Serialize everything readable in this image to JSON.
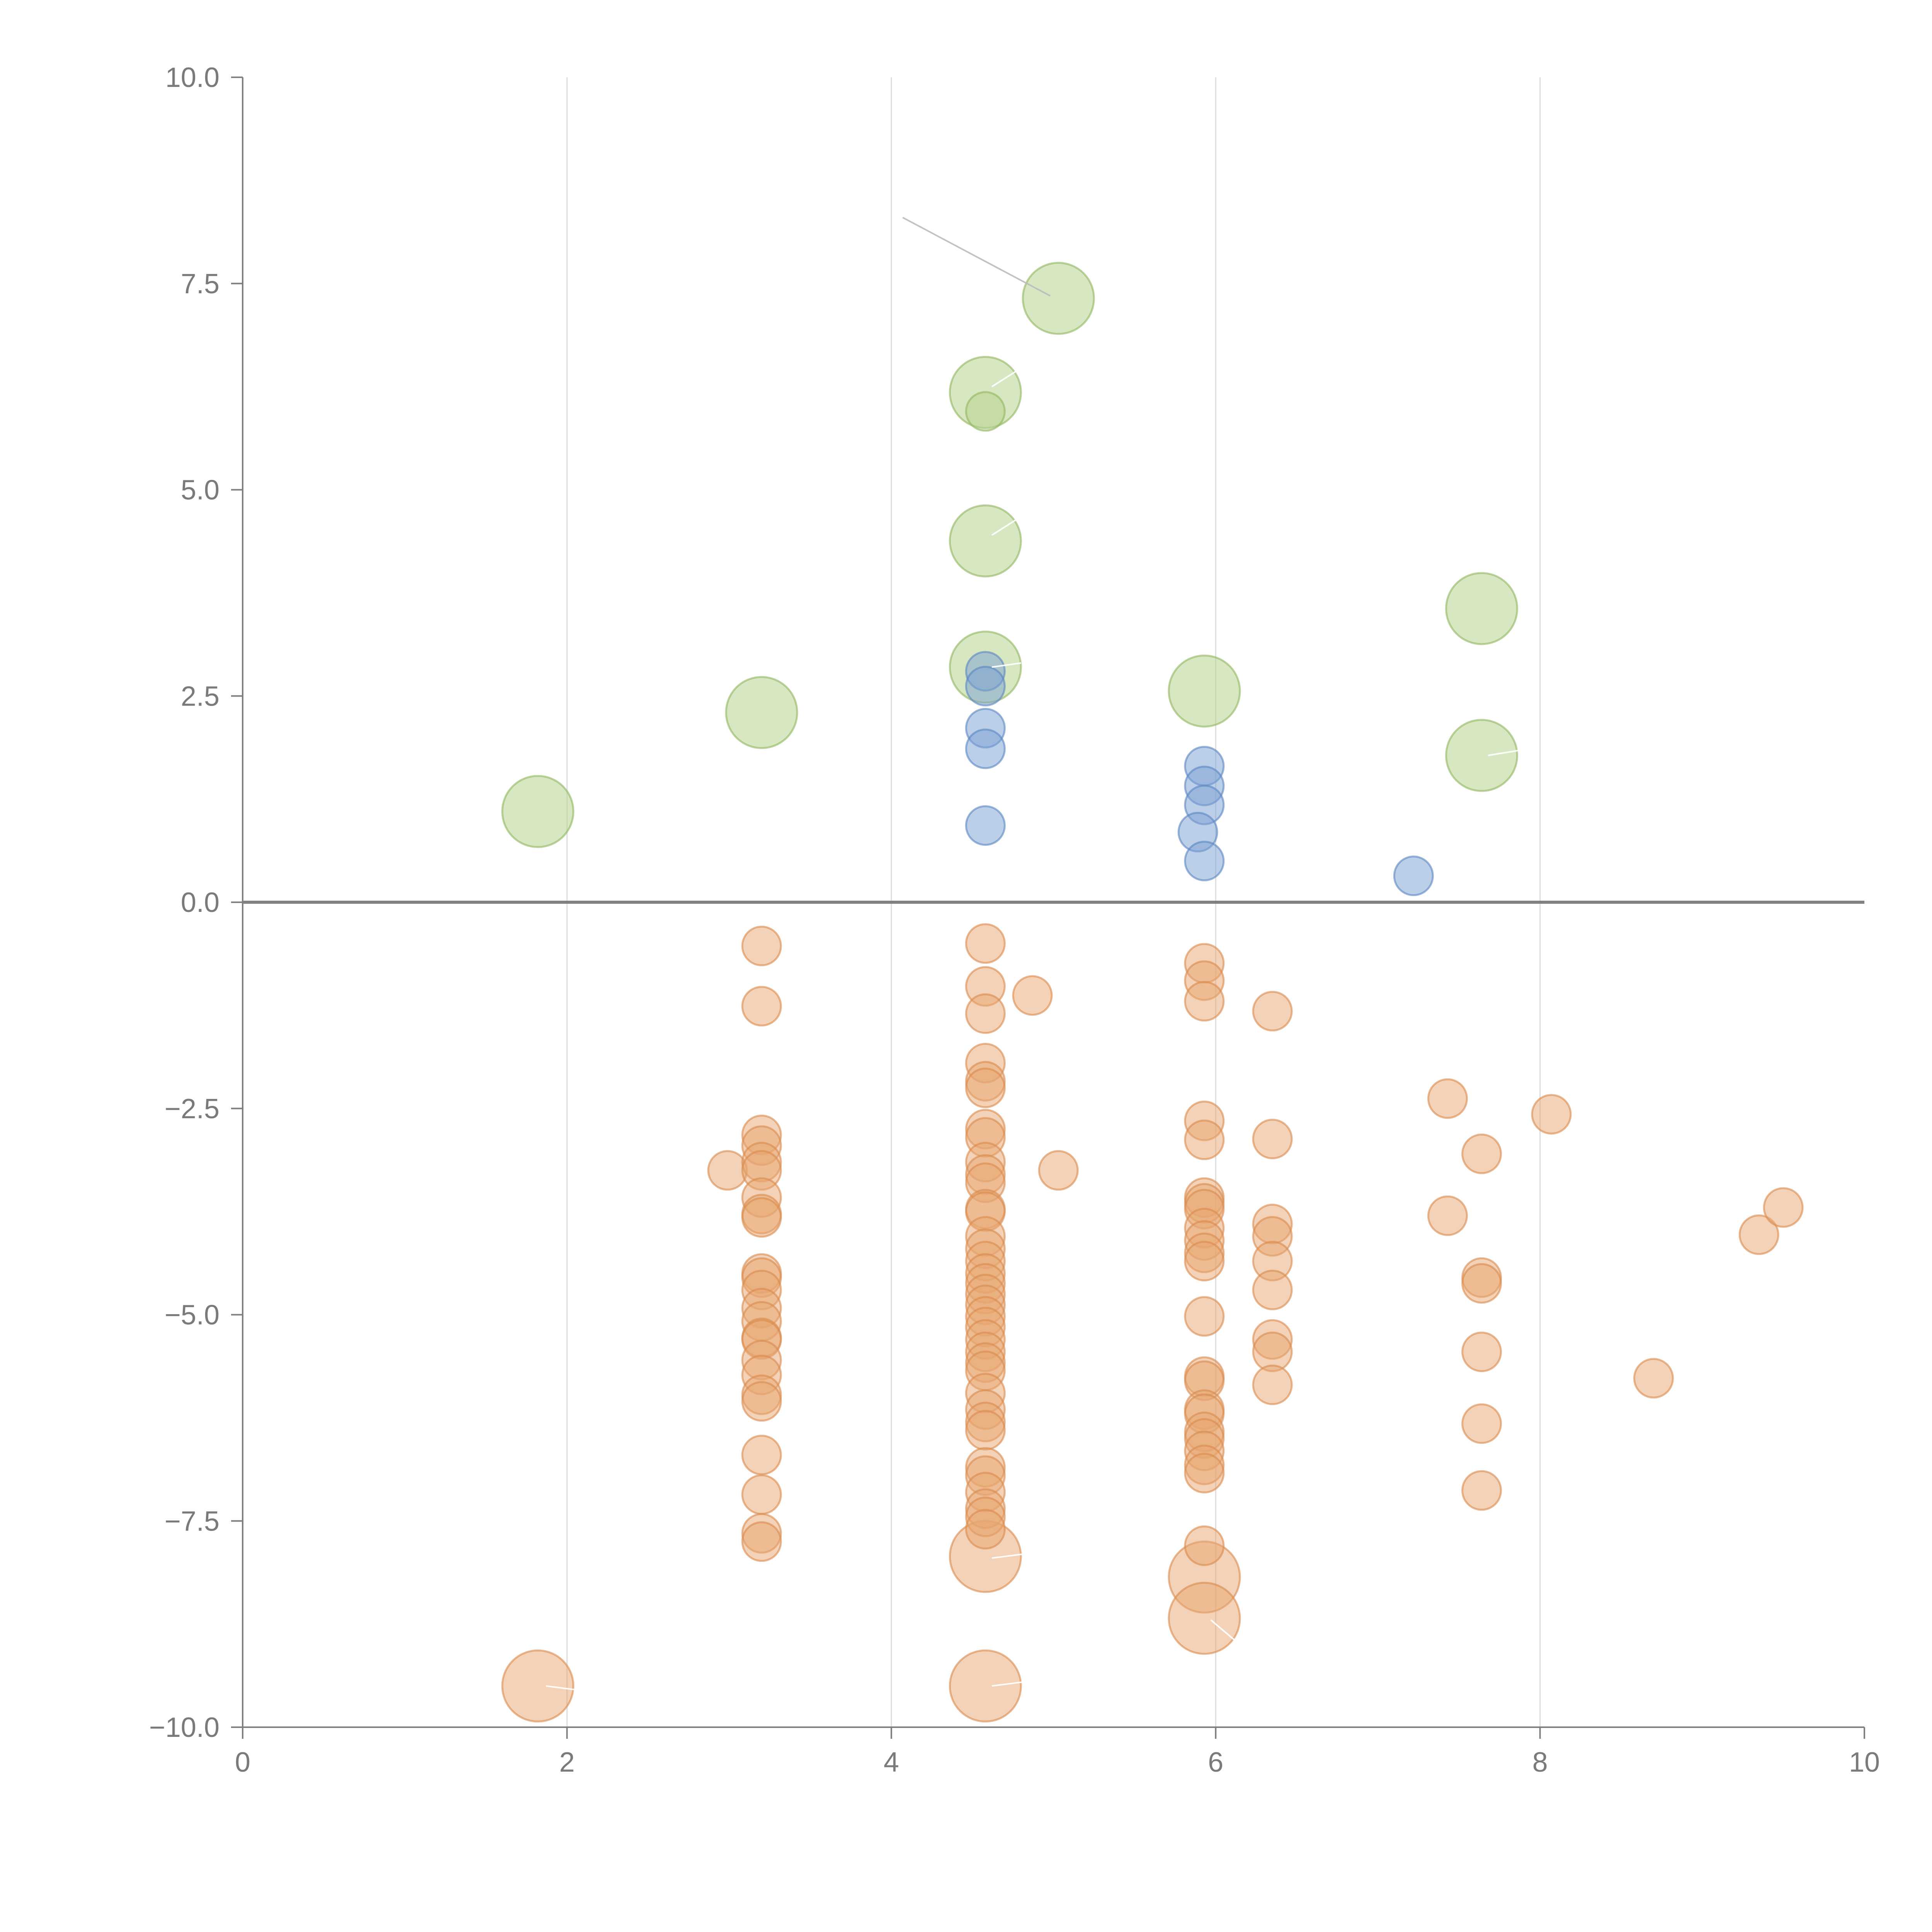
{
  "chart_data": {
    "type": "scatter",
    "title": "",
    "xlabel": "",
    "ylabel": "",
    "xlim": [
      0,
      10
    ],
    "ylim": [
      -10,
      10
    ],
    "x_ticks": [
      0,
      2,
      4,
      6,
      8,
      10
    ],
    "y_ticks": [
      10,
      7.5,
      5,
      2.5,
      0,
      -2.5,
      -5,
      -7.5,
      -10
    ],
    "x_tick_labels": [
      "0",
      "2",
      "4",
      "6",
      "8",
      "10"
    ],
    "y_tick_labels": [
      "10.0",
      "7.5",
      "5.0",
      "2.5",
      "0.0",
      "−2.5",
      "−5.0",
      "−7.5",
      "−10.0"
    ],
    "grid": "vertical",
    "reference_line": {
      "y": 0
    },
    "colors": {
      "green": "#b7d38e",
      "blue": "#7aa0d4",
      "orange": "#e8a670",
      "axis": "#7f7f7f",
      "grid": "#dcdcdc"
    },
    "series": [
      {
        "name": "green",
        "color": "#b7d38e",
        "stroke": "#8fb55f",
        "opacity": 0.55,
        "points": [
          {
            "x": 1.82,
            "y": 1.1,
            "size": 3
          },
          {
            "x": 3.2,
            "y": 2.3,
            "size": 3
          },
          {
            "x": 4.58,
            "y": 2.85,
            "size": 3
          },
          {
            "x": 4.58,
            "y": 4.38,
            "size": 3
          },
          {
            "x": 4.58,
            "y": 6.18,
            "size": 3
          },
          {
            "x": 4.58,
            "y": 5.95,
            "size": 1
          },
          {
            "x": 5.03,
            "y": 7.32,
            "size": 3
          },
          {
            "x": 5.93,
            "y": 2.56,
            "size": 3
          },
          {
            "x": 7.64,
            "y": 3.56,
            "size": 3
          },
          {
            "x": 7.64,
            "y": 1.78,
            "size": 3
          }
        ]
      },
      {
        "name": "blue",
        "color": "#7aa0d4",
        "stroke": "#5a86c2",
        "opacity": 0.5,
        "points": [
          {
            "x": 4.58,
            "y": 2.8,
            "size": 1
          },
          {
            "x": 4.58,
            "y": 2.62,
            "size": 1
          },
          {
            "x": 4.58,
            "y": 2.11,
            "size": 1
          },
          {
            "x": 4.58,
            "y": 1.86,
            "size": 1
          },
          {
            "x": 4.58,
            "y": 0.93,
            "size": 1
          },
          {
            "x": 5.93,
            "y": 1.65,
            "size": 1
          },
          {
            "x": 5.93,
            "y": 1.41,
            "size": 1
          },
          {
            "x": 5.93,
            "y": 1.18,
            "size": 1
          },
          {
            "x": 5.89,
            "y": 0.85,
            "size": 1
          },
          {
            "x": 5.93,
            "y": 0.5,
            "size": 1
          },
          {
            "x": 7.22,
            "y": 0.32,
            "size": 1
          }
        ]
      },
      {
        "name": "orange",
        "color": "#e8a670",
        "stroke": "#d98a4c",
        "opacity": 0.5,
        "points": [
          {
            "x": 3.2,
            "y": -0.53,
            "size": 1
          },
          {
            "x": 3.2,
            "y": -1.26,
            "size": 1
          },
          {
            "x": 2.99,
            "y": -3.25,
            "size": 1
          },
          {
            "x": 3.2,
            "y": -2.82,
            "size": 1
          },
          {
            "x": 3.2,
            "y": -2.95,
            "size": 1
          },
          {
            "x": 3.2,
            "y": -3.15,
            "size": 1
          },
          {
            "x": 3.2,
            "y": -3.25,
            "size": 1
          },
          {
            "x": 3.2,
            "y": -3.58,
            "size": 1
          },
          {
            "x": 3.2,
            "y": -3.78,
            "size": 1
          },
          {
            "x": 3.2,
            "y": -3.82,
            "size": 1
          },
          {
            "x": 3.2,
            "y": -4.5,
            "size": 1
          },
          {
            "x": 3.2,
            "y": -4.55,
            "size": 1
          },
          {
            "x": 3.2,
            "y": -4.7,
            "size": 1
          },
          {
            "x": 3.2,
            "y": -4.92,
            "size": 1
          },
          {
            "x": 3.2,
            "y": -5.08,
            "size": 1
          },
          {
            "x": 3.2,
            "y": -5.28,
            "size": 1
          },
          {
            "x": 3.2,
            "y": -5.3,
            "size": 1
          },
          {
            "x": 3.2,
            "y": -5.55,
            "size": 1
          },
          {
            "x": 3.2,
            "y": -5.73,
            "size": 1
          },
          {
            "x": 3.2,
            "y": -5.97,
            "size": 1
          },
          {
            "x": 3.2,
            "y": -6.05,
            "size": 1
          },
          {
            "x": 3.2,
            "y": -6.7,
            "size": 1
          },
          {
            "x": 3.2,
            "y": -7.18,
            "size": 1
          },
          {
            "x": 3.2,
            "y": -7.65,
            "size": 1
          },
          {
            "x": 3.2,
            "y": -7.75,
            "size": 1
          },
          {
            "x": 4.58,
            "y": -0.5,
            "size": 1
          },
          {
            "x": 4.58,
            "y": -1.02,
            "size": 1
          },
          {
            "x": 4.58,
            "y": -1.35,
            "size": 1
          },
          {
            "x": 4.58,
            "y": -1.95,
            "size": 1
          },
          {
            "x": 4.58,
            "y": -2.17,
            "size": 1
          },
          {
            "x": 4.58,
            "y": -2.25,
            "size": 1
          },
          {
            "x": 4.58,
            "y": -2.75,
            "size": 1
          },
          {
            "x": 4.58,
            "y": -2.85,
            "size": 1
          },
          {
            "x": 4.58,
            "y": -3.15,
            "size": 1
          },
          {
            "x": 4.58,
            "y": -3.3,
            "size": 1
          },
          {
            "x": 4.58,
            "y": -3.4,
            "size": 1
          },
          {
            "x": 4.58,
            "y": -3.72,
            "size": 1
          },
          {
            "x": 4.58,
            "y": -3.75,
            "size": 1
          },
          {
            "x": 4.58,
            "y": -4.05,
            "size": 1
          },
          {
            "x": 4.58,
            "y": -4.2,
            "size": 1
          },
          {
            "x": 4.58,
            "y": -4.35,
            "size": 1
          },
          {
            "x": 4.58,
            "y": -4.5,
            "size": 1
          },
          {
            "x": 4.58,
            "y": -4.62,
            "size": 1
          },
          {
            "x": 4.58,
            "y": -4.75,
            "size": 1
          },
          {
            "x": 4.58,
            "y": -4.88,
            "size": 1
          },
          {
            "x": 4.58,
            "y": -5.02,
            "size": 1
          },
          {
            "x": 4.58,
            "y": -5.15,
            "size": 1
          },
          {
            "x": 4.58,
            "y": -5.3,
            "size": 1
          },
          {
            "x": 4.58,
            "y": -5.45,
            "size": 1
          },
          {
            "x": 4.58,
            "y": -5.58,
            "size": 1
          },
          {
            "x": 4.58,
            "y": -5.68,
            "size": 1
          },
          {
            "x": 4.58,
            "y": -5.95,
            "size": 1
          },
          {
            "x": 4.58,
            "y": -6.15,
            "size": 1
          },
          {
            "x": 4.58,
            "y": -6.3,
            "size": 1
          },
          {
            "x": 4.58,
            "y": -6.4,
            "size": 1
          },
          {
            "x": 4.58,
            "y": -6.85,
            "size": 1
          },
          {
            "x": 4.58,
            "y": -6.95,
            "size": 1
          },
          {
            "x": 4.58,
            "y": -7.15,
            "size": 1
          },
          {
            "x": 4.58,
            "y": -7.35,
            "size": 1
          },
          {
            "x": 4.58,
            "y": -7.45,
            "size": 1
          },
          {
            "x": 4.58,
            "y": -7.6,
            "size": 1
          },
          {
            "x": 4.87,
            "y": -1.13,
            "size": 1
          },
          {
            "x": 5.03,
            "y": -3.25,
            "size": 1
          },
          {
            "x": 5.93,
            "y": -0.74,
            "size": 1
          },
          {
            "x": 5.93,
            "y": -0.95,
            "size": 1
          },
          {
            "x": 5.93,
            "y": -1.2,
            "size": 1
          },
          {
            "x": 5.93,
            "y": -2.65,
            "size": 1
          },
          {
            "x": 5.93,
            "y": -2.88,
            "size": 1
          },
          {
            "x": 5.93,
            "y": -3.58,
            "size": 1
          },
          {
            "x": 5.93,
            "y": -3.65,
            "size": 1
          },
          {
            "x": 5.93,
            "y": -3.72,
            "size": 1
          },
          {
            "x": 5.93,
            "y": -3.95,
            "size": 1
          },
          {
            "x": 5.93,
            "y": -4.1,
            "size": 1
          },
          {
            "x": 5.93,
            "y": -4.25,
            "size": 1
          },
          {
            "x": 5.93,
            "y": -4.35,
            "size": 1
          },
          {
            "x": 5.93,
            "y": -5.02,
            "size": 1
          },
          {
            "x": 5.93,
            "y": -5.75,
            "size": 1
          },
          {
            "x": 5.93,
            "y": -5.8,
            "size": 1
          },
          {
            "x": 5.93,
            "y": -6.15,
            "size": 1
          },
          {
            "x": 5.93,
            "y": -6.2,
            "size": 1
          },
          {
            "x": 5.93,
            "y": -6.42,
            "size": 1
          },
          {
            "x": 5.93,
            "y": -6.5,
            "size": 1
          },
          {
            "x": 5.93,
            "y": -6.65,
            "size": 1
          },
          {
            "x": 5.93,
            "y": -6.82,
            "size": 1
          },
          {
            "x": 5.93,
            "y": -6.92,
            "size": 1
          },
          {
            "x": 5.93,
            "y": -7.8,
            "size": 1
          },
          {
            "x": 6.35,
            "y": -1.32,
            "size": 1
          },
          {
            "x": 6.35,
            "y": -2.87,
            "size": 1
          },
          {
            "x": 6.35,
            "y": -3.9,
            "size": 1
          },
          {
            "x": 6.35,
            "y": -4.05,
            "size": 1
          },
          {
            "x": 6.35,
            "y": -4.35,
            "size": 1
          },
          {
            "x": 6.35,
            "y": -4.7,
            "size": 1
          },
          {
            "x": 6.35,
            "y": -5.3,
            "size": 1
          },
          {
            "x": 6.35,
            "y": -5.45,
            "size": 1
          },
          {
            "x": 6.35,
            "y": -5.85,
            "size": 1
          },
          {
            "x": 7.43,
            "y": -2.38,
            "size": 1
          },
          {
            "x": 7.43,
            "y": -3.8,
            "size": 1
          },
          {
            "x": 7.64,
            "y": -3.05,
            "size": 1
          },
          {
            "x": 7.64,
            "y": -4.55,
            "size": 1
          },
          {
            "x": 7.64,
            "y": -4.62,
            "size": 1
          },
          {
            "x": 7.64,
            "y": -5.45,
            "size": 1
          },
          {
            "x": 7.64,
            "y": -6.32,
            "size": 1
          },
          {
            "x": 7.64,
            "y": -7.13,
            "size": 1
          },
          {
            "x": 8.07,
            "y": -2.57,
            "size": 1
          },
          {
            "x": 8.7,
            "y": -5.77,
            "size": 1
          },
          {
            "x": 9.35,
            "y": -4.03,
            "size": 1
          },
          {
            "x": 9.5,
            "y": -3.7,
            "size": 1
          },
          {
            "x": 1.82,
            "y": -9.5,
            "size": 3
          },
          {
            "x": 4.58,
            "y": -7.93,
            "size": 3
          },
          {
            "x": 4.58,
            "y": -9.5,
            "size": 3
          },
          {
            "x": 5.93,
            "y": -8.18,
            "size": 3
          },
          {
            "x": 5.93,
            "y": -8.68,
            "size": 3
          }
        ]
      }
    ],
    "leader_lines": [
      {
        "x1": 4.07,
        "y1": 8.3,
        "x2": 4.98,
        "y2": 7.35,
        "color": "#bbbbbb"
      },
      {
        "x1": 4.62,
        "y1": 6.25,
        "x2": 4.78,
        "y2": 6.45,
        "color": "#ffffff"
      },
      {
        "x1": 4.62,
        "y1": 4.45,
        "x2": 4.78,
        "y2": 4.65,
        "color": "#ffffff"
      },
      {
        "x1": 4.62,
        "y1": 2.85,
        "x2": 4.8,
        "y2": 2.9,
        "color": "#ffffff"
      },
      {
        "x1": 7.68,
        "y1": 1.78,
        "x2": 7.9,
        "y2": 1.85,
        "color": "#ffffff"
      },
      {
        "x1": 1.87,
        "y1": -9.5,
        "x2": 2.07,
        "y2": -9.55,
        "color": "#ffffff"
      },
      {
        "x1": 4.62,
        "y1": -7.95,
        "x2": 4.82,
        "y2": -7.9,
        "color": "#ffffff"
      },
      {
        "x1": 4.62,
        "y1": -9.5,
        "x2": 4.82,
        "y2": -9.45,
        "color": "#ffffff"
      },
      {
        "x1": 5.97,
        "y1": -8.7,
        "x2": 6.12,
        "y2": -8.95,
        "color": "#ffffff"
      }
    ]
  }
}
